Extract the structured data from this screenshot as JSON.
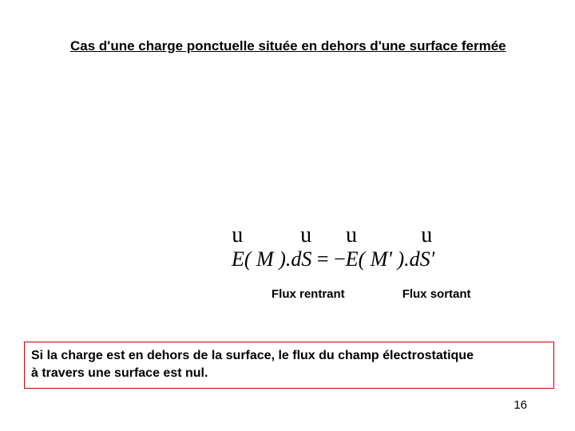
{
  "title": "Cas d'une charge ponctuelle située en dehors  d'une surface fermée",
  "equation": {
    "E1": "E",
    "M1": "( M ).d",
    "S1": "S",
    "eq": " = −",
    "E2": "E",
    "M2": "( M' ).d",
    "S2": "S'"
  },
  "flux_rentrant": "Flux rentrant",
  "flux_sortant": "Flux sortant",
  "conclusion_line1": "Si la charge est en dehors de la surface, le flux du champ électrostatique",
  "conclusion_line2": " à travers  une surface est nul.",
  "page_number": "16",
  "colors": {
    "border": "#c00000",
    "text": "#000000",
    "background": "#ffffff"
  },
  "fontsizes": {
    "title": 17,
    "equation": 26,
    "flux_label": 15,
    "conclusion": 16,
    "page_num": 15
  }
}
